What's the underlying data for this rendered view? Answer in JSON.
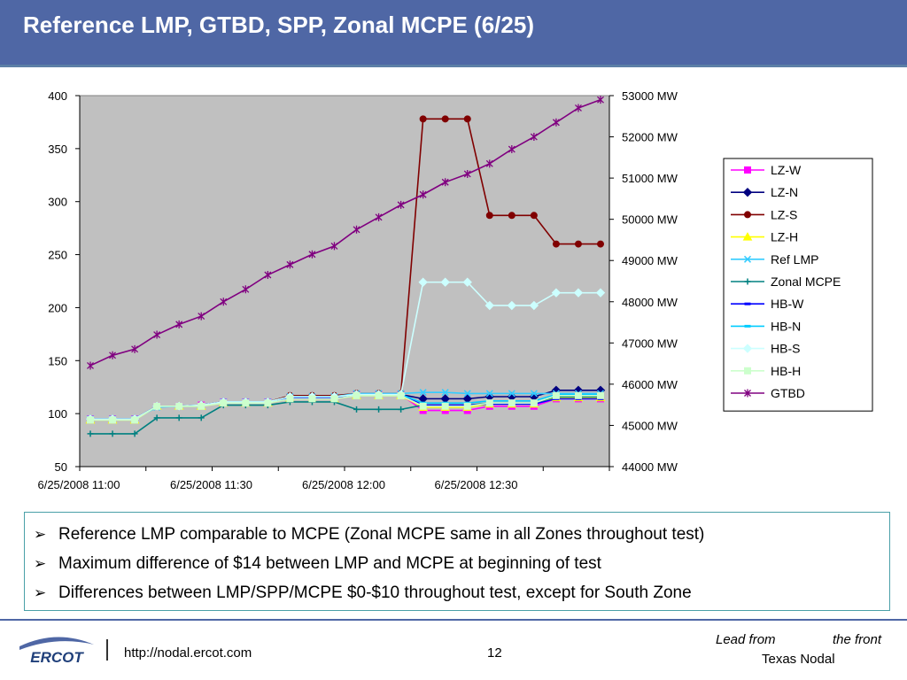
{
  "slide": {
    "title": "Reference LMP, GTBD, SPP, Zonal MCPE (6/25)",
    "bullets": [
      "Reference LMP comparable to MCPE (Zonal MCPE same in all Zones throughout test)",
      "Maximum difference of $14 between LMP and MCPE at beginning of test",
      "Differences between LMP/SPP/MCPE $0-$10 throughout test, except for South Zone"
    ],
    "bullet_glyph": "➢"
  },
  "footer": {
    "logo_text": "ERCOT",
    "url": "http://nodal.ercot.com",
    "page": "12",
    "tagline_a": "Lead from",
    "tagline_b": "the front",
    "tagline_c": "Texas Nodal"
  },
  "chart_data": {
    "type": "line",
    "plot_background": "#c0c0c0",
    "grid": false,
    "legend_position": "right",
    "x_tick_labels": [
      "6/25/2008 11:00",
      "6/25/2008 11:30",
      "6/25/2008 12:00",
      "6/25/2008 12:30"
    ],
    "x_tick_indices": [
      0,
      6,
      12,
      18
    ],
    "n_points": 24,
    "y_left": {
      "min": 50,
      "max": 400,
      "ticks": [
        "50",
        "100",
        "150",
        "200",
        "250",
        "300",
        "350",
        "400"
      ]
    },
    "y_right": {
      "min": 44000,
      "max": 53000,
      "ticks": [
        "44000 MW",
        "45000 MW",
        "46000 MW",
        "47000 MW",
        "48000 MW",
        "49000 MW",
        "50000 MW",
        "51000 MW",
        "52000 MW",
        "53000 MW"
      ]
    },
    "series": [
      {
        "name": "LZ-W",
        "color": "#ff00ff",
        "marker": "square",
        "axis": "left",
        "values": [
          95,
          95,
          95,
          107,
          107,
          108,
          111,
          111,
          111,
          115,
          115,
          115,
          118,
          118,
          118,
          103,
          103,
          103,
          107,
          107,
          107,
          114,
          114,
          114
        ]
      },
      {
        "name": "LZ-N",
        "color": "#000080",
        "marker": "diamond",
        "axis": "left",
        "values": [
          95,
          95,
          95,
          107,
          107,
          108,
          111,
          111,
          111,
          116,
          116,
          116,
          118,
          118,
          118,
          114,
          114,
          114,
          116,
          116,
          116,
          122,
          122,
          122
        ]
      },
      {
        "name": "LZ-S",
        "color": "#800000",
        "marker": "circle",
        "axis": "left",
        "values": [
          95,
          95,
          95,
          107,
          107,
          108,
          111,
          111,
          111,
          117,
          117,
          117,
          119,
          119,
          119,
          378,
          378,
          378,
          287,
          287,
          287,
          260,
          260,
          260
        ]
      },
      {
        "name": "LZ-H",
        "color": "#ffff00",
        "marker": "triangle",
        "axis": "left",
        "values": [
          94,
          94,
          94,
          107,
          107,
          107,
          110,
          110,
          110,
          114,
          114,
          114,
          117,
          117,
          117,
          106,
          106,
          106,
          109,
          109,
          109,
          115,
          115,
          115
        ]
      },
      {
        "name": "Ref LMP",
        "color": "#33ccff",
        "marker": "x",
        "axis": "left",
        "values": [
          95,
          95,
          95,
          106,
          107,
          107,
          111,
          111,
          111,
          116,
          116,
          116,
          119,
          119,
          119,
          120,
          120,
          119,
          119,
          119,
          119,
          119,
          119,
          119
        ]
      },
      {
        "name": "Zonal MCPE",
        "color": "#008080",
        "marker": "plus",
        "axis": "left",
        "values": [
          81,
          81,
          81,
          96,
          96,
          96,
          108,
          108,
          108,
          111,
          111,
          111,
          104,
          104,
          104,
          108,
          108,
          108,
          110,
          110,
          110,
          116,
          116,
          116
        ]
      },
      {
        "name": "HB-W",
        "color": "#0000ff",
        "marker": "dash",
        "axis": "left",
        "values": [
          95,
          95,
          95,
          107,
          107,
          108,
          111,
          111,
          111,
          115,
          115,
          115,
          118,
          118,
          118,
          108,
          108,
          108,
          109,
          109,
          109,
          114,
          114,
          114
        ]
      },
      {
        "name": "HB-N",
        "color": "#00ccff",
        "marker": "dash",
        "axis": "left",
        "values": [
          95,
          95,
          95,
          107,
          107,
          108,
          111,
          111,
          111,
          116,
          116,
          116,
          118,
          118,
          118,
          110,
          110,
          110,
          112,
          112,
          112,
          118,
          118,
          118
        ]
      },
      {
        "name": "HB-S",
        "color": "#ccffff",
        "marker": "diamond",
        "axis": "left",
        "values": [
          95,
          95,
          95,
          107,
          107,
          108,
          111,
          111,
          111,
          116,
          116,
          116,
          118,
          118,
          118,
          224,
          224,
          224,
          202,
          202,
          202,
          214,
          214,
          214
        ]
      },
      {
        "name": "HB-H",
        "color": "#ccffcc",
        "marker": "square",
        "axis": "left",
        "values": [
          94,
          94,
          94,
          107,
          107,
          107,
          110,
          110,
          110,
          114,
          114,
          114,
          117,
          117,
          117,
          107,
          107,
          107,
          110,
          110,
          110,
          117,
          117,
          117
        ]
      },
      {
        "name": "GTBD",
        "color": "#800080",
        "marker": "asterisk",
        "axis": "right",
        "values": [
          46450,
          46700,
          46850,
          47200,
          47450,
          47650,
          48000,
          48300,
          48650,
          48900,
          49150,
          49350,
          49750,
          50050,
          50350,
          50600,
          50900,
          51100,
          51350,
          51700,
          52000,
          52350,
          52700,
          52900
        ]
      }
    ]
  }
}
